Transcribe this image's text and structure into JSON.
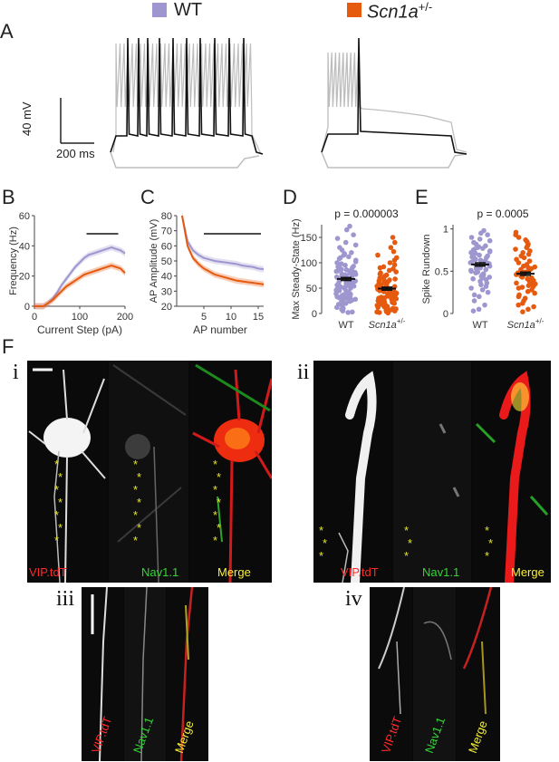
{
  "legend": {
    "wt": {
      "label": "WT",
      "color": "#9e97cf"
    },
    "mut": {
      "label": "Scn1a",
      "superscript": "+/-",
      "color": "#e55a0f"
    }
  },
  "panels": {
    "a": "A",
    "b": "B",
    "c": "C",
    "d": "D",
    "e": "E",
    "f": "F",
    "i": "i",
    "ii": "ii",
    "iii": "iii",
    "iv": "iv"
  },
  "scalebar": {
    "voltage": "40 mV",
    "time": "200 ms"
  },
  "chart_data": [
    {
      "panel": "B",
      "type": "line",
      "xlabel": "Current Step (pA)",
      "ylabel": "Frequency (Hz)",
      "xlim": [
        0,
        200
      ],
      "ylim": [
        0,
        60
      ],
      "xticks": [
        0,
        100,
        200
      ],
      "yticks": [
        0,
        20,
        40,
        60
      ],
      "significance_bar": [
        115,
        185
      ],
      "series": [
        {
          "name": "WT",
          "x": [
            0,
            10,
            20,
            30,
            40,
            50,
            60,
            70,
            80,
            90,
            100,
            110,
            120,
            130,
            140,
            150,
            160,
            170,
            180,
            190,
            200
          ],
          "y": [
            0,
            0,
            0,
            2,
            5,
            9,
            14,
            18,
            22,
            26,
            29,
            32,
            34,
            35,
            36,
            37,
            38,
            39,
            38,
            37,
            35
          ]
        },
        {
          "name": "Scn1a+/-",
          "x": [
            0,
            10,
            20,
            30,
            40,
            50,
            60,
            70,
            80,
            90,
            100,
            110,
            120,
            130,
            140,
            150,
            160,
            170,
            180,
            190,
            200
          ],
          "y": [
            0,
            0,
            0,
            2,
            4,
            7,
            10,
            13,
            15,
            17,
            19,
            21,
            22,
            23,
            24,
            25,
            26,
            27,
            26,
            25,
            22
          ]
        }
      ]
    },
    {
      "panel": "C",
      "type": "line",
      "xlabel": "AP number",
      "ylabel": "AP Amplitude (mV)",
      "xlim": [
        0,
        16
      ],
      "ylim": [
        20,
        80
      ],
      "xticks": [
        5,
        10,
        15
      ],
      "yticks": [
        20,
        30,
        40,
        50,
        60,
        70,
        80
      ],
      "significance_bar": [
        5,
        15.5
      ],
      "series": [
        {
          "name": "WT",
          "x": [
            1,
            2,
            3,
            4,
            5,
            6,
            7,
            8,
            9,
            10,
            11,
            12,
            13,
            14,
            15,
            16
          ],
          "y": [
            80,
            63,
            57,
            54,
            52,
            51,
            50,
            49.5,
            49,
            48.5,
            48,
            47,
            46.5,
            46,
            45,
            44.5
          ]
        },
        {
          "name": "Scn1a+/-",
          "x": [
            1,
            2,
            3,
            4,
            5,
            6,
            7,
            8,
            9,
            10,
            11,
            12,
            13,
            14,
            15,
            16
          ],
          "y": [
            80,
            60,
            52,
            48,
            45,
            43,
            41,
            40,
            39,
            38,
            37,
            36.5,
            36,
            35.5,
            35,
            34.5
          ]
        }
      ]
    },
    {
      "panel": "D",
      "type": "scatter",
      "title": "p = 0.000003",
      "ylabel": "Max Steady-State (Hz)",
      "categories": [
        "WT",
        "Scn1a+/-"
      ],
      "ylim": [
        0,
        175
      ],
      "yticks": [
        0,
        50,
        100,
        150
      ],
      "series": [
        {
          "name": "WT",
          "mean": 68,
          "sem": 3,
          "values": [
            172,
            165,
            155,
            148,
            140,
            135,
            130,
            125,
            120,
            118,
            115,
            112,
            110,
            108,
            105,
            102,
            100,
            98,
            96,
            95,
            93,
            92,
            90,
            88,
            87,
            86,
            85,
            84,
            83,
            82,
            81,
            80,
            79,
            78,
            77,
            76,
            75,
            74,
            73,
            72,
            71,
            70,
            69,
            68,
            67,
            66,
            65,
            64,
            63,
            62,
            61,
            60,
            59,
            58,
            57,
            56,
            55,
            54,
            53,
            52,
            51,
            50,
            49,
            48,
            47,
            46,
            45,
            44,
            43,
            42,
            41,
            40,
            39,
            38,
            37,
            36,
            35,
            34,
            33,
            32,
            31,
            30,
            29,
            28,
            27,
            26,
            25,
            24,
            22,
            20,
            18,
            15,
            12,
            10,
            8,
            5,
            3,
            2
          ]
        },
        {
          "name": "Scn1a+/-",
          "mean": 49,
          "sem": 3,
          "values": [
            150,
            140,
            130,
            122,
            115,
            110,
            105,
            100,
            96,
            92,
            90,
            88,
            85,
            82,
            80,
            78,
            76,
            74,
            72,
            70,
            68,
            66,
            65,
            64,
            63,
            62,
            60,
            59,
            58,
            57,
            56,
            55,
            54,
            53,
            52,
            51,
            50,
            49,
            48,
            47,
            46,
            45,
            44,
            43,
            42,
            41,
            40,
            39,
            38,
            37,
            36,
            35,
            34,
            33,
            32,
            31,
            30,
            29,
            28,
            27,
            26,
            25,
            24,
            23,
            22,
            21,
            20,
            19,
            18,
            17,
            16,
            15,
            14,
            13,
            12,
            11,
            10,
            9,
            8,
            7,
            6,
            5,
            4,
            3,
            2,
            1
          ]
        }
      ],
      "xtick_superscript": "+/-"
    },
    {
      "panel": "E",
      "type": "scatter",
      "title": "p = 0.0005",
      "ylabel": "Spike Rundown",
      "categories": [
        "WT",
        "Scn1a+/-"
      ],
      "ylim": [
        0,
        1.05
      ],
      "yticks": [
        0,
        0.5,
        1
      ],
      "series": [
        {
          "name": "WT",
          "mean": 0.58,
          "sem": 0.02,
          "values": [
            0.98,
            0.95,
            0.93,
            0.9,
            0.88,
            0.86,
            0.84,
            0.82,
            0.8,
            0.79,
            0.78,
            0.77,
            0.76,
            0.75,
            0.74,
            0.73,
            0.72,
            0.71,
            0.7,
            0.69,
            0.68,
            0.67,
            0.66,
            0.65,
            0.64,
            0.63,
            0.62,
            0.61,
            0.6,
            0.6,
            0.59,
            0.58,
            0.58,
            0.57,
            0.56,
            0.55,
            0.54,
            0.53,
            0.52,
            0.51,
            0.5,
            0.49,
            0.48,
            0.47,
            0.46,
            0.45,
            0.44,
            0.43,
            0.42,
            0.41,
            0.4,
            0.38,
            0.36,
            0.34,
            0.32,
            0.3,
            0.28,
            0.25,
            0.22,
            0.2,
            0.15,
            0.1,
            0.05,
            0.03
          ]
        },
        {
          "name": "Scn1a+/-",
          "mean": 0.47,
          "sem": 0.02,
          "values": [
            0.96,
            0.93,
            0.9,
            0.87,
            0.85,
            0.82,
            0.8,
            0.78,
            0.76,
            0.74,
            0.72,
            0.7,
            0.68,
            0.66,
            0.64,
            0.62,
            0.6,
            0.58,
            0.56,
            0.55,
            0.54,
            0.53,
            0.52,
            0.51,
            0.5,
            0.49,
            0.48,
            0.47,
            0.46,
            0.45,
            0.44,
            0.43,
            0.42,
            0.41,
            0.4,
            0.39,
            0.38,
            0.37,
            0.36,
            0.35,
            0.34,
            0.33,
            0.32,
            0.31,
            0.3,
            0.28,
            0.26,
            0.24,
            0.22,
            0.2,
            0.18,
            0.15,
            0.12,
            0.1,
            0.08,
            0.05,
            0.02
          ]
        }
      ],
      "xtick_superscript": "+/-"
    }
  ],
  "micrographs": {
    "labels": {
      "vip": "VIP.tdT",
      "nav": "Nav1.1",
      "merge": "Merge"
    },
    "colors": {
      "vip": "#ff2a2a",
      "nav": "#35d635",
      "merge": "#f5f03a",
      "asterisk": "#e6e62a"
    },
    "asterisk": "*"
  }
}
